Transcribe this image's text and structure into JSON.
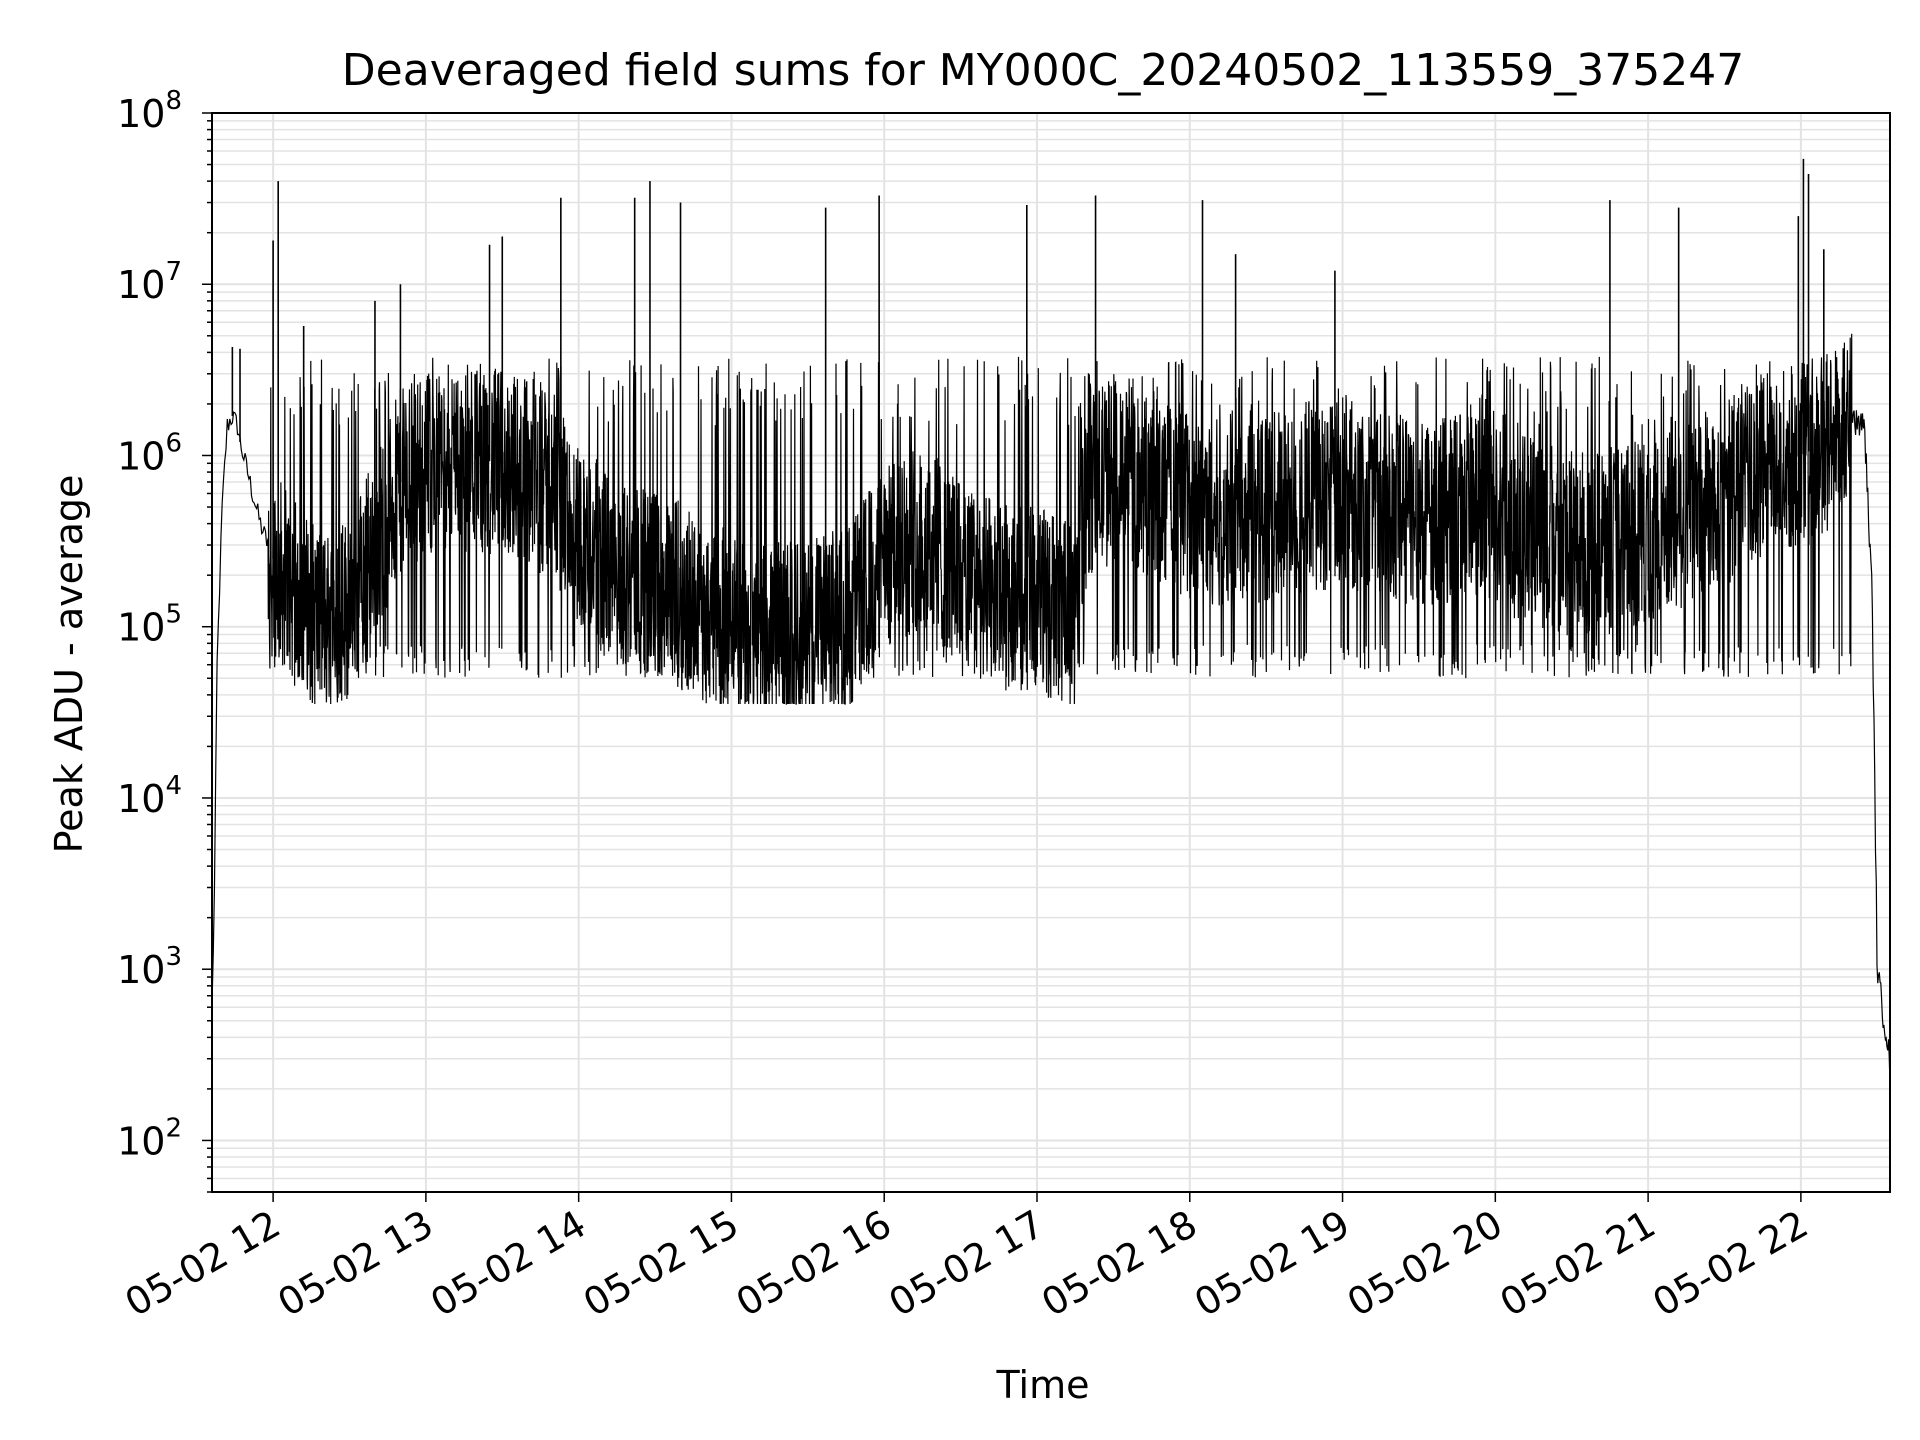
{
  "chart_data": {
    "type": "line",
    "title": "Deaveraged field sums for MY000C_20240502_113559_375247",
    "xlabel": "Time",
    "ylabel": "Peak ADU - average",
    "yscale": "log",
    "ylim": [
      50,
      100000000
    ],
    "xlim": [
      "2024-05-02 11:36",
      "2024-05-02 22:35"
    ],
    "x_tick_labels": [
      "05-02 12",
      "05-02 13",
      "05-02 14",
      "05-02 15",
      "05-02 16",
      "05-02 17",
      "05-02 18",
      "05-02 19",
      "05-02 20",
      "05-02 21",
      "05-02 22"
    ],
    "x_tick_times": [
      "2024-05-02 12:00",
      "2024-05-02 13:00",
      "2024-05-02 14:00",
      "2024-05-02 15:00",
      "2024-05-02 16:00",
      "2024-05-02 17:00",
      "2024-05-02 18:00",
      "2024-05-02 19:00",
      "2024-05-02 20:00",
      "2024-05-02 21:00",
      "2024-05-02 22:00"
    ],
    "y_ticks": [
      {
        "base": "10",
        "exp": "2"
      },
      {
        "base": "10",
        "exp": "3"
      },
      {
        "base": "10",
        "exp": "4"
      },
      {
        "base": "10",
        "exp": "5"
      },
      {
        "base": "10",
        "exp": "6"
      },
      {
        "base": "10",
        "exp": "7"
      },
      {
        "base": "10",
        "exp": "8"
      }
    ],
    "grid": true,
    "line_color": "#000000",
    "grid_color": "#e3e3e3",
    "series": [
      {
        "x": [
          "2024-05-02 11:36",
          "2024-05-02 11:37",
          "2024-05-02 11:38",
          "2024-05-02 11:40",
          "2024-05-02 11:42",
          "2024-05-02 11:44",
          "2024-05-02 11:46",
          "2024-05-02 11:47",
          "2024-05-02 11:50",
          "2024-05-02 11:52",
          "2024-05-02 11:55",
          "2024-05-02 11:58",
          "2024-05-02 12:00",
          "2024-05-02 12:05",
          "2024-05-02 12:10",
          "2024-05-02 12:15",
          "2024-05-02 12:20",
          "2024-05-02 12:30",
          "2024-05-02 12:40",
          "2024-05-02 12:50",
          "2024-05-02 13:00",
          "2024-05-02 13:10",
          "2024-05-02 13:20",
          "2024-05-02 13:30",
          "2024-05-02 13:40",
          "2024-05-02 13:50",
          "2024-05-02 14:00",
          "2024-05-02 14:15",
          "2024-05-02 14:30",
          "2024-05-02 14:45",
          "2024-05-02 15:00",
          "2024-05-02 15:15",
          "2024-05-02 15:30",
          "2024-05-02 15:45",
          "2024-05-02 16:00",
          "2024-05-02 16:15",
          "2024-05-02 16:30",
          "2024-05-02 16:45",
          "2024-05-02 17:00",
          "2024-05-02 17:10",
          "2024-05-02 17:15",
          "2024-05-02 17:20",
          "2024-05-02 17:30",
          "2024-05-02 17:45",
          "2024-05-02 18:00",
          "2024-05-02 18:15",
          "2024-05-02 18:30",
          "2024-05-02 18:45",
          "2024-05-02 19:00",
          "2024-05-02 19:15",
          "2024-05-02 19:30",
          "2024-05-02 19:45",
          "2024-05-02 20:00",
          "2024-05-02 20:15",
          "2024-05-02 20:30",
          "2024-05-02 20:45",
          "2024-05-02 21:00",
          "2024-05-02 21:15",
          "2024-05-02 21:30",
          "2024-05-02 21:45",
          "2024-05-02 22:00",
          "2024-05-02 22:10",
          "2024-05-02 22:20",
          "2024-05-02 22:25",
          "2024-05-02 22:28",
          "2024-05-02 22:30",
          "2024-05-02 22:32",
          "2024-05-02 22:34",
          "2024-05-02 22:35"
        ],
        "y": [
          600,
          3000,
          60000,
          500000,
          1500000,
          1700000,
          1500000,
          1200000,
          800000,
          600000,
          400000,
          300000,
          250000,
          180000,
          150000,
          120000,
          110000,
          130000,
          300000,
          700000,
          900000,
          1000000,
          950000,
          900000,
          850000,
          600000,
          350000,
          200000,
          180000,
          140000,
          100000,
          90000,
          95000,
          110000,
          250000,
          350000,
          200000,
          150000,
          150000,
          120000,
          110000,
          700000,
          800000,
          650000,
          500000,
          450000,
          500000,
          550000,
          600000,
          500000,
          450000,
          500000,
          450000,
          350000,
          300000,
          320000,
          350000,
          450000,
          600000,
          800000,
          1000000,
          1200000,
          1600000,
          1500000,
          150000,
          1000,
          600,
          400,
          250
        ]
      }
    ],
    "spikes": [
      {
        "x": "2024-05-02 11:44",
        "y": 4300000
      },
      {
        "x": "2024-05-02 11:47",
        "y": 4200000
      },
      {
        "x": "2024-05-02 12:00",
        "y": 18000000
      },
      {
        "x": "2024-05-02 12:02",
        "y": 40000000
      },
      {
        "x": "2024-05-02 12:12",
        "y": 5700000
      },
      {
        "x": "2024-05-02 12:40",
        "y": 8000000
      },
      {
        "x": "2024-05-02 12:50",
        "y": 10000000
      },
      {
        "x": "2024-05-02 13:25",
        "y": 17000000
      },
      {
        "x": "2024-05-02 13:30",
        "y": 19000000
      },
      {
        "x": "2024-05-02 13:53",
        "y": 32000000
      },
      {
        "x": "2024-05-02 14:22",
        "y": 32000000
      },
      {
        "x": "2024-05-02 14:28",
        "y": 40000000
      },
      {
        "x": "2024-05-02 14:40",
        "y": 30000000
      },
      {
        "x": "2024-05-02 15:37",
        "y": 28000000
      },
      {
        "x": "2024-05-02 15:58",
        "y": 33000000
      },
      {
        "x": "2024-05-02 16:56",
        "y": 29000000
      },
      {
        "x": "2024-05-02 17:23",
        "y": 33000000
      },
      {
        "x": "2024-05-02 18:05",
        "y": 31000000
      },
      {
        "x": "2024-05-02 18:18",
        "y": 15000000
      },
      {
        "x": "2024-05-02 18:57",
        "y": 12000000
      },
      {
        "x": "2024-05-02 20:45",
        "y": 31000000
      },
      {
        "x": "2024-05-02 21:12",
        "y": 28000000
      },
      {
        "x": "2024-05-02 21:59",
        "y": 25000000
      },
      {
        "x": "2024-05-02 22:01",
        "y": 54000000
      },
      {
        "x": "2024-05-02 22:03",
        "y": 44000000
      },
      {
        "x": "2024-05-02 22:09",
        "y": 16000000
      }
    ],
    "band": {
      "low": 50000,
      "high": 1500000
    }
  }
}
